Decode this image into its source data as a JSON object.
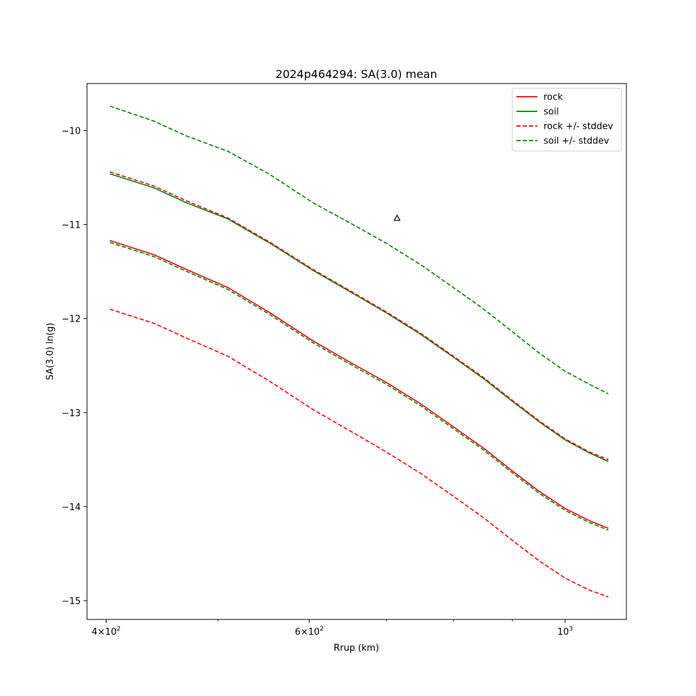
{
  "chart_data": {
    "type": "line",
    "title": "2024p464294: SA(3.0) mean",
    "xlabel": "Rrup (km)",
    "ylabel": "SA(3.0) ln(g)",
    "xscale": "log",
    "xlim": [
      385,
      1130
    ],
    "ylim": [
      -15.2,
      -9.5
    ],
    "x_ticks": [
      {
        "value": 400,
        "label_base": "4",
        "label_exp": "2"
      },
      {
        "value": 600,
        "label_base": "6",
        "label_exp": "2"
      },
      {
        "value": 1000,
        "label_base": "10",
        "label_exp": "3"
      }
    ],
    "x_ticks_show_mantissa": [
      true,
      true,
      false
    ],
    "x_minor_ticks": [
      500,
      700,
      800,
      900
    ],
    "y_ticks": [
      -15,
      -14,
      -13,
      -12,
      -11,
      -10
    ],
    "y_tick_labels": [
      "−15",
      "−14",
      "−13",
      "−12",
      "−11",
      "−10"
    ],
    "grid": false,
    "legend_position": "top-right",
    "x": [
      403,
      440,
      470,
      510,
      555,
      605,
      650,
      700,
      750,
      800,
      850,
      900,
      950,
      1000,
      1050,
      1090
    ],
    "series": [
      {
        "name": "rock",
        "color": "#ff0000",
        "dash": "solid",
        "values": [
          -11.17,
          -11.32,
          -11.48,
          -11.67,
          -11.94,
          -12.24,
          -12.46,
          -12.68,
          -12.91,
          -13.15,
          -13.38,
          -13.62,
          -13.84,
          -14.02,
          -14.15,
          -14.23
        ]
      },
      {
        "name": "soil",
        "color": "#008000",
        "dash": "solid",
        "values": [
          -10.46,
          -10.61,
          -10.77,
          -10.94,
          -11.2,
          -11.49,
          -11.71,
          -11.94,
          -12.17,
          -12.41,
          -12.64,
          -12.88,
          -13.1,
          -13.29,
          -13.43,
          -13.52
        ]
      },
      {
        "name": "rock +/- stddev",
        "color": "#ff0000",
        "dash": "dashed",
        "legend": true,
        "values": [
          -11.9,
          -12.05,
          -12.21,
          -12.4,
          -12.67,
          -12.97,
          -13.19,
          -13.42,
          -13.65,
          -13.89,
          -14.12,
          -14.36,
          -14.58,
          -14.76,
          -14.89,
          -14.96
        ]
      },
      {
        "name": "rock +/- stddev upper",
        "color": "#ff0000",
        "dash": "dashed",
        "legend": false,
        "values": [
          -10.44,
          -10.59,
          -10.75,
          -10.93,
          -11.19,
          -11.48,
          -11.7,
          -11.93,
          -12.16,
          -12.4,
          -12.63,
          -12.87,
          -13.09,
          -13.28,
          -13.42,
          -13.5
        ]
      },
      {
        "name": "soil +/- stddev",
        "color": "#008000",
        "dash": "dashed",
        "legend": true,
        "values": [
          -9.74,
          -9.9,
          -10.06,
          -10.22,
          -10.47,
          -10.77,
          -10.98,
          -11.2,
          -11.43,
          -11.67,
          -11.9,
          -12.14,
          -12.37,
          -12.56,
          -12.7,
          -12.8
        ]
      },
      {
        "name": "soil +/- stddev lower",
        "color": "#008000",
        "dash": "dashed",
        "legend": false,
        "values": [
          -11.19,
          -11.34,
          -11.5,
          -11.69,
          -11.96,
          -12.26,
          -12.48,
          -12.7,
          -12.93,
          -13.17,
          -13.4,
          -13.64,
          -13.86,
          -14.04,
          -14.17,
          -14.25
        ]
      }
    ],
    "legend": [
      {
        "label": "rock",
        "color": "#ff0000",
        "dash": "solid"
      },
      {
        "label": "soil",
        "color": "#008000",
        "dash": "solid"
      },
      {
        "label": "rock +/- stddev",
        "color": "#ff0000",
        "dash": "dashed"
      },
      {
        "label": "soil +/- stddev",
        "color": "#008000",
        "dash": "dashed"
      }
    ],
    "observation": {
      "x": 715,
      "y": -10.93,
      "marker": "triangle-open",
      "color": "#000000"
    }
  }
}
